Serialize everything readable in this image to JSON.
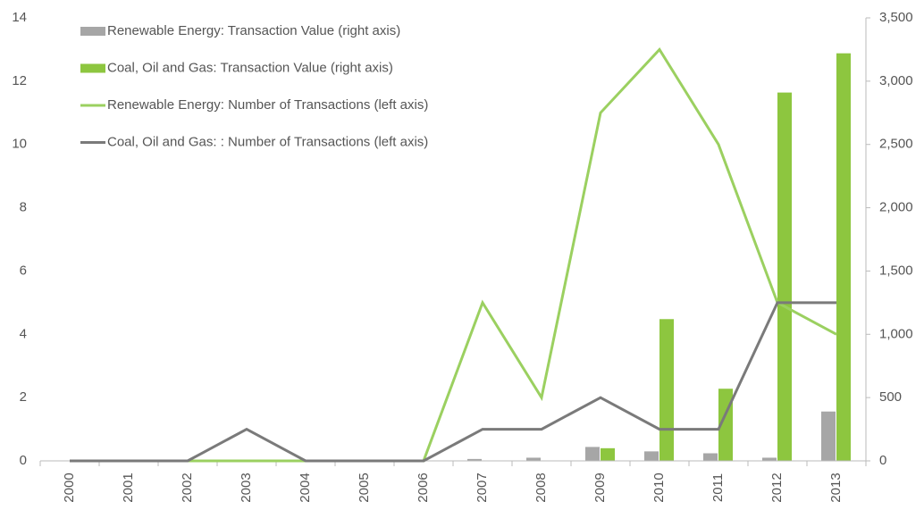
{
  "chart_data": {
    "type": "bar-line",
    "categories": [
      "2000",
      "2001",
      "2002",
      "2003",
      "2004",
      "2005",
      "2006",
      "2007",
      "2008",
      "2009",
      "2010",
      "2011",
      "2012",
      "2013"
    ],
    "series": [
      {
        "name": "Renewable Energy: Transaction Value (right axis)",
        "kind": "bar",
        "axis": "y2",
        "color": "#a6a6a6",
        "values": [
          0,
          0,
          0,
          0,
          0,
          0,
          0,
          15,
          25,
          110,
          75,
          60,
          25,
          390
        ]
      },
      {
        "name": "Coal, Oil and Gas: Transaction Value (right axis)",
        "kind": "bar",
        "axis": "y2",
        "color": "#8dc63f",
        "values": [
          0,
          0,
          0,
          0,
          0,
          0,
          0,
          0,
          0,
          100,
          1120,
          570,
          2910,
          3220
        ]
      },
      {
        "name": "Renewable Energy: Number of Transactions (left axis)",
        "kind": "line",
        "axis": "y",
        "color": "#9bd060",
        "values": [
          0,
          0,
          0,
          0,
          0,
          0,
          0,
          5,
          2,
          11,
          13,
          10,
          5,
          4
        ]
      },
      {
        "name": "Coal, Oil and Gas: : Number of Transactions (left axis)",
        "kind": "line",
        "axis": "y",
        "color": "#7a7a7a",
        "values": [
          0,
          0,
          0,
          1,
          0,
          0,
          0,
          1,
          1,
          2,
          1,
          1,
          5,
          5
        ]
      }
    ],
    "ylim": [
      0,
      14
    ],
    "yticks": [
      0,
      2,
      4,
      6,
      8,
      10,
      12,
      14
    ],
    "y2lim": [
      0,
      3500
    ],
    "y2ticks": [
      0,
      500,
      {
        "value": 1000,
        "label": "1,000"
      },
      {
        "value": 1500,
        "label": "1,500"
      },
      {
        "value": 2000,
        "label": "2,000"
      },
      {
        "value": 2500,
        "label": "2,500"
      },
      {
        "value": 3000,
        "label": "3,000"
      },
      {
        "value": 3500,
        "label": "3,500"
      }
    ]
  }
}
